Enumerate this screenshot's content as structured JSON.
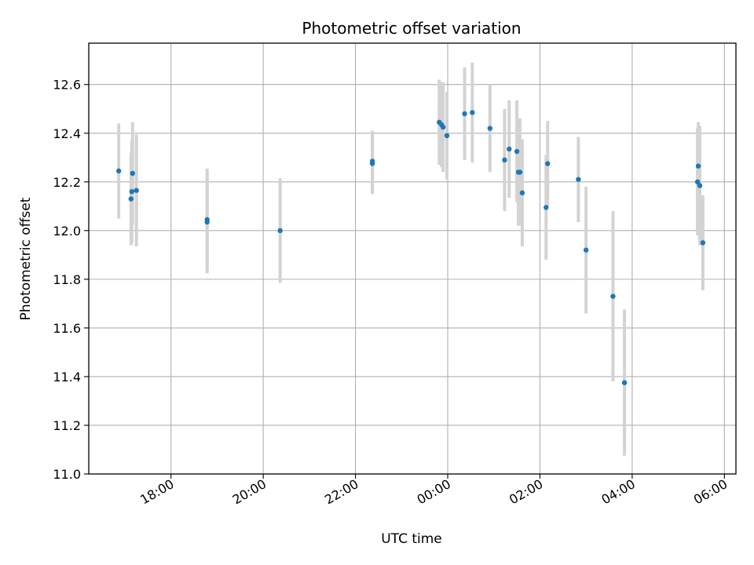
{
  "chart_data": {
    "type": "scatter",
    "title": "Photometric offset variation",
    "xlabel": "UTC time",
    "ylabel": "Photometric offset",
    "x_axis": "time",
    "x_range": [
      "16:13",
      "06:15"
    ],
    "ylim": [
      11.0,
      12.77
    ],
    "grid": true,
    "x_ticks": [
      "18:00",
      "20:00",
      "22:00",
      "00:00",
      "02:00",
      "04:00",
      "06:00"
    ],
    "y_ticks": [
      "11.0",
      "11.2",
      "11.4",
      "11.6",
      "11.8",
      "12.0",
      "12.2",
      "12.4",
      "12.6"
    ],
    "colors": {
      "point": "#1f77b4",
      "errorbar": "#d3d3d3",
      "grid": "#b0b0b0"
    },
    "points": [
      {
        "x": "16:52",
        "y": 12.245,
        "err": 0.195
      },
      {
        "x": "17:08",
        "y": 12.13,
        "err": 0.19
      },
      {
        "x": "17:09",
        "y": 12.16,
        "err": 0.21
      },
      {
        "x": "17:10",
        "y": 12.235,
        "err": 0.21
      },
      {
        "x": "17:15",
        "y": 12.165,
        "err": 0.23
      },
      {
        "x": "18:47",
        "y": 12.045,
        "err": 0.21
      },
      {
        "x": "18:47",
        "y": 12.035,
        "err": 0.21
      },
      {
        "x": "20:22",
        "y": 12.0,
        "err": 0.215
      },
      {
        "x": "22:22",
        "y": 12.275,
        "err": 0.125
      },
      {
        "x": "22:22",
        "y": 12.285,
        "err": 0.125
      },
      {
        "x": "23:49",
        "y": 12.445,
        "err": 0.175
      },
      {
        "x": "23:52",
        "y": 12.435,
        "err": 0.175
      },
      {
        "x": "23:54",
        "y": 12.425,
        "err": 0.185
      },
      {
        "x": "23:59",
        "y": 12.39,
        "err": 0.18
      },
      {
        "x": "00:22",
        "y": 12.48,
        "err": 0.19
      },
      {
        "x": "00:32",
        "y": 12.485,
        "err": 0.205
      },
      {
        "x": "00:55",
        "y": 12.42,
        "err": 0.18
      },
      {
        "x": "01:14",
        "y": 12.29,
        "err": 0.21
      },
      {
        "x": "01:20",
        "y": 12.335,
        "err": 0.2
      },
      {
        "x": "01:30",
        "y": 12.325,
        "err": 0.21
      },
      {
        "x": "01:32",
        "y": 12.24,
        "err": 0.22
      },
      {
        "x": "01:34",
        "y": 12.24,
        "err": 0.22
      },
      {
        "x": "01:37",
        "y": 12.155,
        "err": 0.22
      },
      {
        "x": "02:08",
        "y": 12.095,
        "err": 0.215
      },
      {
        "x": "02:10",
        "y": 12.275,
        "err": 0.175
      },
      {
        "x": "02:50",
        "y": 12.21,
        "err": 0.175
      },
      {
        "x": "03:00",
        "y": 11.92,
        "err": 0.26
      },
      {
        "x": "03:35",
        "y": 11.73,
        "err": 0.35
      },
      {
        "x": "03:50",
        "y": 11.375,
        "err": 0.3
      },
      {
        "x": "05:25",
        "y": 12.2,
        "err": 0.22
      },
      {
        "x": "05:26",
        "y": 12.265,
        "err": 0.18
      },
      {
        "x": "05:28",
        "y": 12.185,
        "err": 0.245
      },
      {
        "x": "05:32",
        "y": 11.95,
        "err": 0.195
      }
    ]
  }
}
